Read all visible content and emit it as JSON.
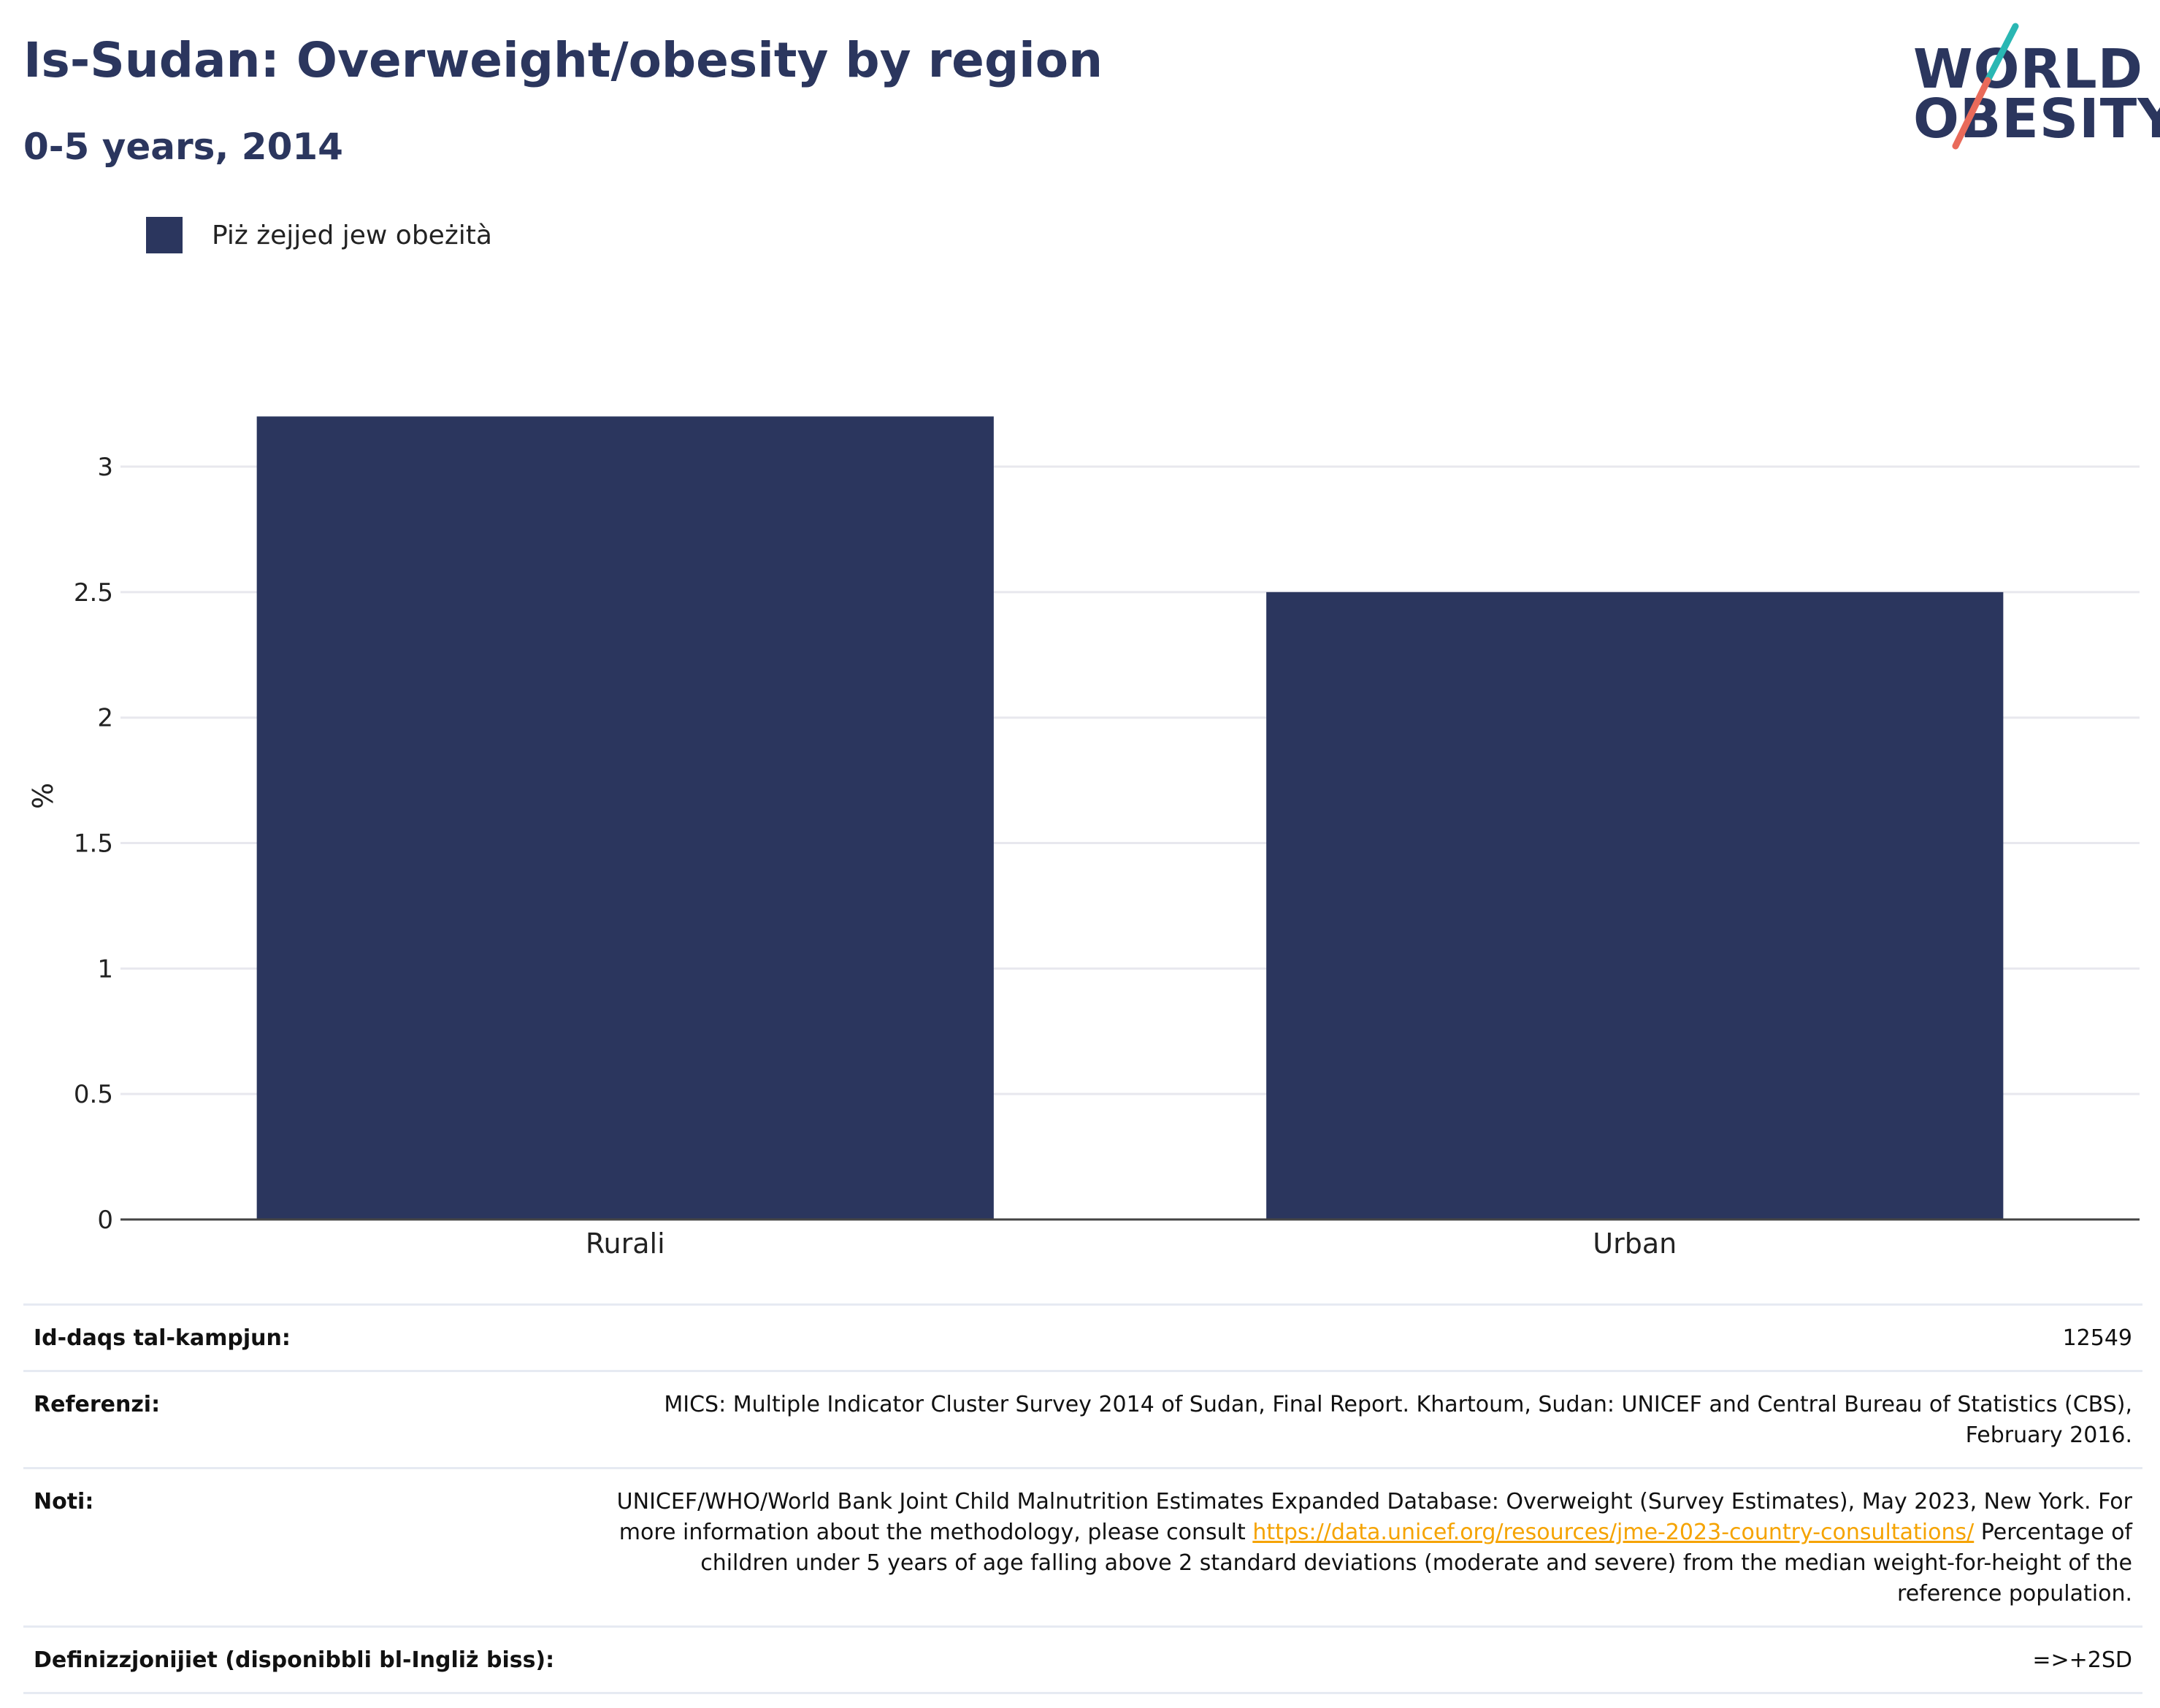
{
  "header": {
    "title": "Is-Sudan: Overweight/obesity by region",
    "subtitle": "0-5 years, 2014"
  },
  "logo": {
    "line1": "WORLD",
    "line2": "OBESITY",
    "stroke_colors": [
      "#2ab7b3",
      "#e96a5a"
    ]
  },
  "colors": {
    "bar": "#2b365e",
    "grid": "#e8e8ee",
    "axis": "#444444",
    "link": "#f5a300"
  },
  "chart_data": {
    "type": "bar",
    "categories": [
      "Rurali",
      "Urban"
    ],
    "series": [
      {
        "name": "Piż żejjed jew obeżità",
        "values": [
          3.2,
          2.5
        ]
      }
    ],
    "ylabel": "%",
    "xlabel": "",
    "ylim": [
      0,
      3.2
    ],
    "yticks": [
      0,
      0.5,
      1,
      1.5,
      2,
      2.5,
      3
    ],
    "ytick_labels": [
      "0",
      "0.5",
      "1",
      "1.5",
      "2",
      "2.5",
      "3"
    ],
    "grid": true,
    "legend_position": "top-left"
  },
  "notes": {
    "sample_size": {
      "label": "Id-daqs tal-kampjun:",
      "value": "12549"
    },
    "references": {
      "label": "Referenzi:",
      "value": "MICS: Multiple Indicator Cluster Survey 2014 of Sudan, Final Report. Khartoum, Sudan: UNICEF and Central Bureau of Statistics (CBS), February 2016."
    },
    "notes": {
      "label": "Noti:",
      "text_before": "UNICEF/WHO/World Bank Joint Child Malnutrition Estimates Expanded Database: Overweight (Survey Estimates), May 2023, New York. For more information about the methodology, please consult ",
      "link": "https://data.unicef.org/resources/jme-2023-country-consultations/",
      "text_after": " Percentage of children under 5 years of age falling above 2 standard deviations (moderate and severe) from the median weight-for-height of the reference population."
    },
    "definitions": {
      "label": "Definizzjonijiet (disponibbli bl-Ingliż biss):",
      "value": "=>+2SD"
    }
  }
}
